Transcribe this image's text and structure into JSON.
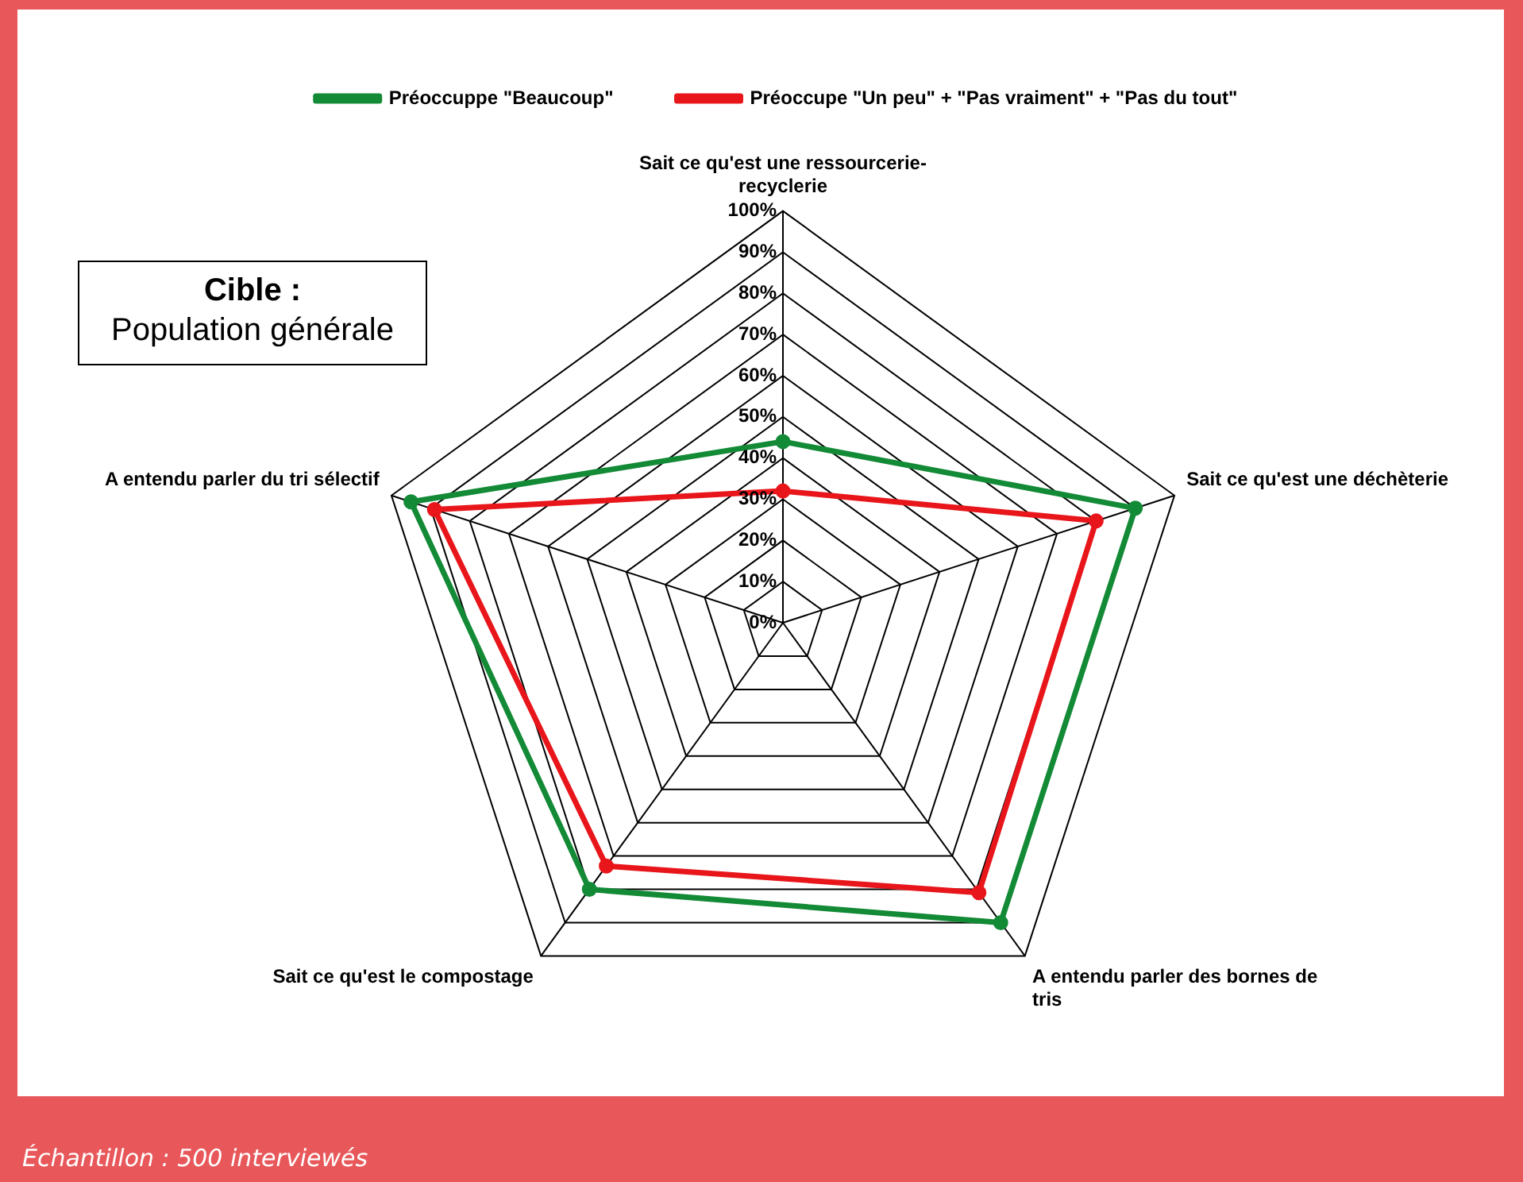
{
  "chart_data": {
    "type": "radar",
    "categories": [
      "Sait ce qu'est une ressourcerie-recyclerie",
      "Sait ce qu'est une déchèterie",
      "A entendu parler des bornes de tris",
      "Sait ce qu'est le compostage",
      "A entendu parler du tri sélectif"
    ],
    "series": [
      {
        "name": "Préoccuppe \"Beaucoup\"",
        "color": "#138a36",
        "values": [
          44,
          90,
          90,
          80,
          95
        ]
      },
      {
        "name": "Préoccupe \"Un peu\" + \"Pas vraiment\" + \"Pas du tout\"",
        "color": "#e8161b",
        "values": [
          32,
          80,
          81,
          73,
          89
        ]
      }
    ],
    "ylim": [
      0,
      100
    ],
    "yticks": [
      {
        "value": 0,
        "label": "0%"
      },
      {
        "value": 10,
        "label": "10%"
      },
      {
        "value": 20,
        "label": "20%"
      },
      {
        "value": 30,
        "label": "30%"
      },
      {
        "value": 40,
        "label": "40%"
      },
      {
        "value": 50,
        "label": "50%"
      },
      {
        "value": 60,
        "label": "60%"
      },
      {
        "value": 70,
        "label": "70%"
      },
      {
        "value": 80,
        "label": "80%"
      },
      {
        "value": 90,
        "label": "90%"
      },
      {
        "value": 100,
        "label": "100%"
      }
    ],
    "grid": true,
    "legend": "top",
    "marker": "circle",
    "line_style": "solid",
    "annotations": [
      "Cible :",
      "Population générale",
      "Échantillon : 500 interviewés"
    ]
  }
}
